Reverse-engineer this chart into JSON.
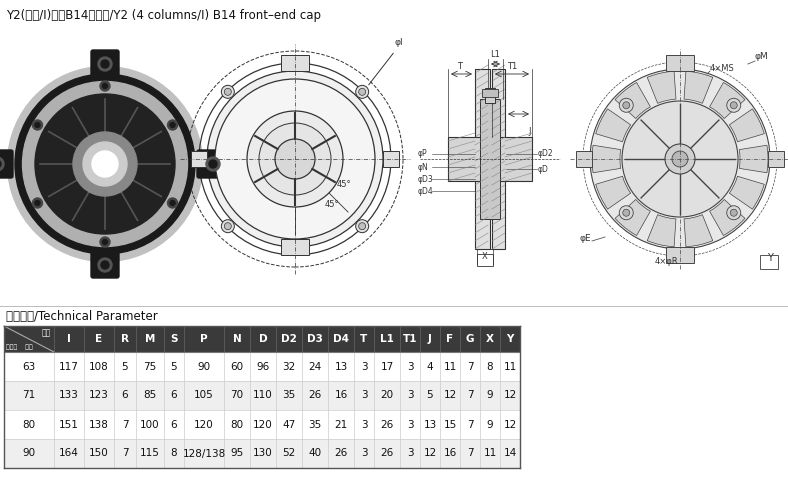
{
  "title": "Y2(四柱/Ⅰ)系列B14前端盖/Y2 (4 columns/I) B14 front–end cap",
  "section_label": "技术参数/Technical Parameter",
  "header_display": [
    "",
    "I",
    "E",
    "R",
    "M",
    "S",
    "P",
    "N",
    "D",
    "D2",
    "D3",
    "D4",
    "T",
    "L1",
    "T1",
    "J",
    "F",
    "G",
    "X",
    "Y"
  ],
  "col1_top": "代号",
  "col1_bot": "机座号    尺寸",
  "rows": [
    [
      "63",
      "117",
      "108",
      "5",
      "75",
      "5",
      "90",
      "60",
      "96",
      "32",
      "24",
      "13",
      "3",
      "17",
      "3",
      "4",
      "11",
      "7",
      "8",
      "11"
    ],
    [
      "71",
      "133",
      "123",
      "6",
      "85",
      "6",
      "105",
      "70",
      "110",
      "35",
      "26",
      "16",
      "3",
      "20",
      "3",
      "5",
      "12",
      "7",
      "9",
      "12"
    ],
    [
      "80",
      "151",
      "138",
      "7",
      "100",
      "6",
      "120",
      "80",
      "120",
      "47",
      "35",
      "21",
      "3",
      "26",
      "3",
      "13",
      "15",
      "7",
      "9",
      "12"
    ],
    [
      "90",
      "164",
      "150",
      "7",
      "115",
      "8",
      "128/138",
      "95",
      "130",
      "52",
      "40",
      "26",
      "3",
      "26",
      "3",
      "12",
      "16",
      "7",
      "11",
      "14"
    ]
  ],
  "header_bg": "#3a3a3a",
  "row_bg_odd": "#ffffff",
  "row_bg_even": "#efefef",
  "border_color": "#cccccc",
  "table_text_color": "#111111",
  "background_color": "#ffffff",
  "fig_width": 7.88,
  "fig_height": 5.04,
  "dpi": 100
}
